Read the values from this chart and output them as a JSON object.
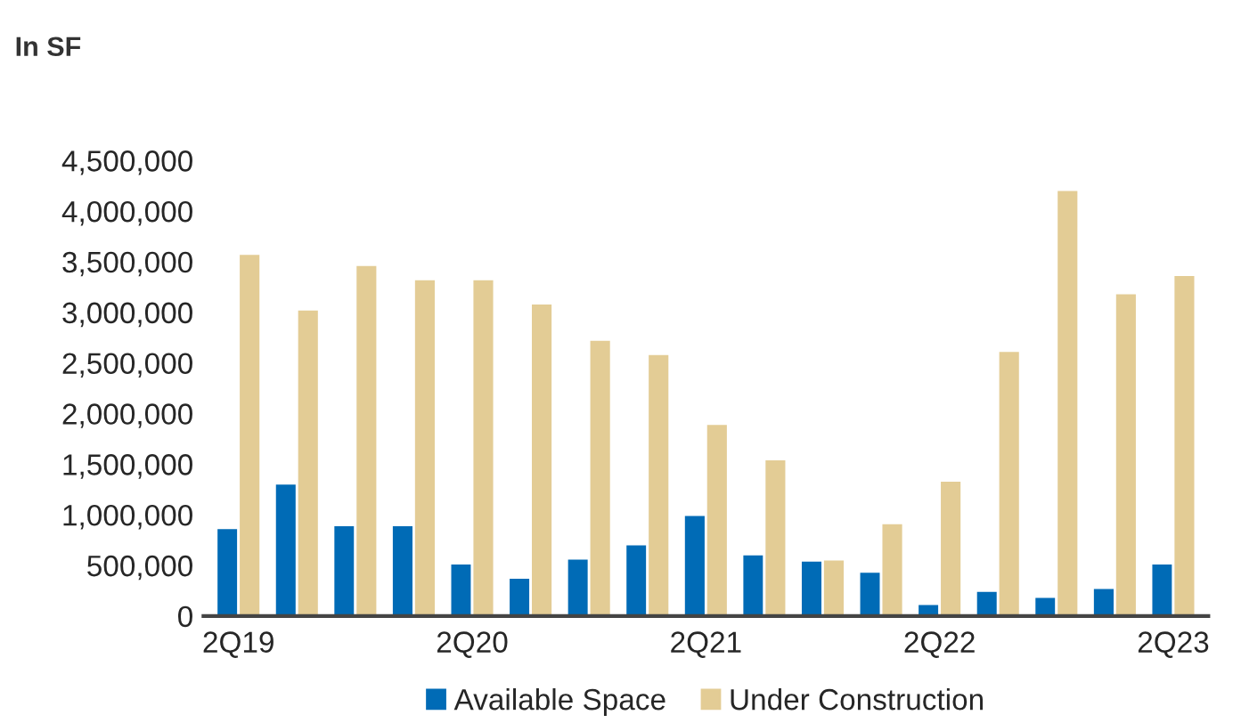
{
  "chart_data": {
    "type": "bar",
    "title": "In SF",
    "categories": [
      "2Q19",
      null,
      null,
      null,
      "2Q20",
      null,
      null,
      null,
      "2Q21",
      null,
      null,
      null,
      "2Q22",
      null,
      null,
      null,
      "2Q23"
    ],
    "series": [
      {
        "name": "Available Space",
        "color": "#006bb6",
        "values": [
          870000,
          1310000,
          900000,
          900000,
          520000,
          380000,
          570000,
          710000,
          1000000,
          610000,
          550000,
          440000,
          120000,
          250000,
          190000,
          280000,
          520000
        ]
      },
      {
        "name": "Under Construction",
        "color": "#e3cc95",
        "values": [
          3580000,
          3030000,
          3470000,
          3330000,
          3330000,
          3090000,
          2730000,
          2590000,
          1900000,
          1550000,
          560000,
          920000,
          1340000,
          2620000,
          4210000,
          3190000,
          3370000
        ]
      }
    ],
    "ylim": [
      0,
      4500000
    ],
    "yticks": [
      {
        "value": 0,
        "label": "0"
      },
      {
        "value": 500000,
        "label": "500,000"
      },
      {
        "value": 1000000,
        "label": "1,000,000"
      },
      {
        "value": 1500000,
        "label": "1,500,000"
      },
      {
        "value": 2000000,
        "label": "2,000,000"
      },
      {
        "value": 2500000,
        "label": "2,500,000"
      },
      {
        "value": 3000000,
        "label": "3,000,000"
      },
      {
        "value": 3500000,
        "label": "3,500,000"
      },
      {
        "value": 4000000,
        "label": "4,000,000"
      },
      {
        "value": 4500000,
        "label": "4,500,000"
      }
    ],
    "grid": false,
    "legend": "bottom"
  }
}
